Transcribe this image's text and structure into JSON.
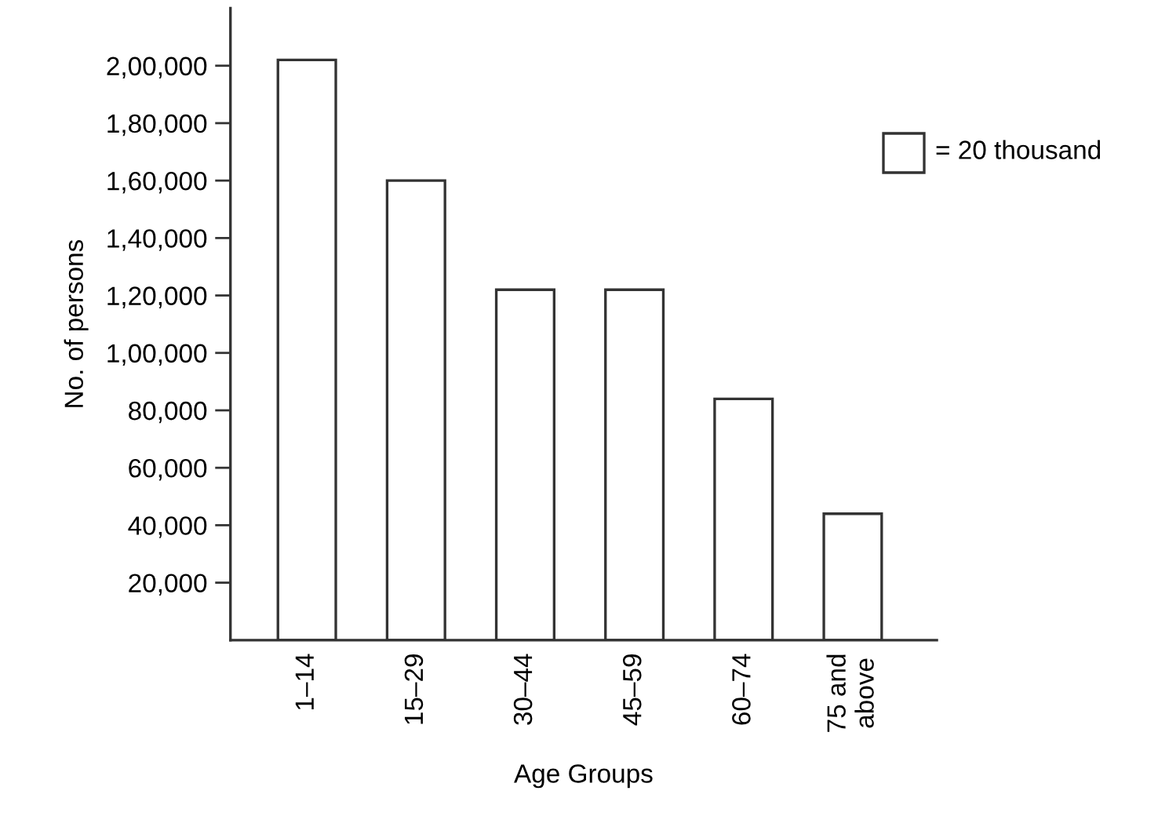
{
  "chart_data": {
    "type": "bar",
    "xlabel": "Age Groups",
    "ylabel": "No. of persons",
    "categories": [
      "1–14",
      "15–29",
      "30–44",
      "45–59",
      "60–74",
      "75 and\nabove"
    ],
    "values": [
      202000,
      160000,
      122000,
      122000,
      84000,
      44000
    ],
    "color": "#ffffff",
    "ylim": [
      0,
      220000
    ],
    "yticks": [
      {
        "value": 20000,
        "label": "20,000"
      },
      {
        "value": 40000,
        "label": "40,000"
      },
      {
        "value": 60000,
        "label": "60,000"
      },
      {
        "value": 80000,
        "label": "80,000"
      },
      {
        "value": 100000,
        "label": "1,00,000"
      },
      {
        "value": 120000,
        "label": "1,20,000"
      },
      {
        "value": 140000,
        "label": "1,40,000"
      },
      {
        "value": 160000,
        "label": "1,60,000"
      },
      {
        "value": 180000,
        "label": "1,80,000"
      },
      {
        "value": 200000,
        "label": "2,00,000"
      }
    ],
    "annotations": [
      "= 20 thousand"
    ],
    "grid": false,
    "legend": false
  }
}
